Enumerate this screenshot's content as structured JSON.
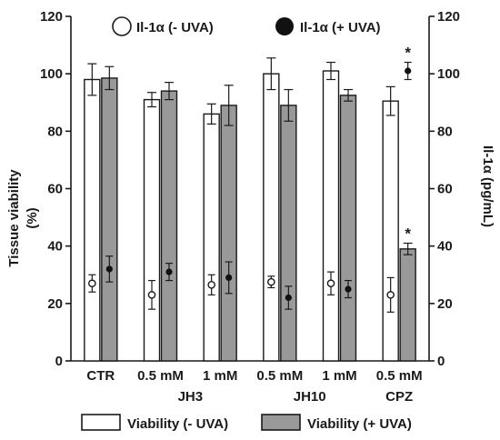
{
  "chart_data": {
    "type": "bar",
    "categories": [
      "CTR",
      "0.5 mM",
      "1 mM",
      "0.5 mM",
      "1 mM",
      "0.5 mM"
    ],
    "groups": [
      {
        "label": "JH3",
        "categories": [
          1,
          2
        ]
      },
      {
        "label": "JH10",
        "categories": [
          3,
          4
        ]
      },
      {
        "label": "CPZ",
        "categories": [
          5
        ]
      }
    ],
    "series": [
      {
        "name": "Viability (- UVA)",
        "kind": "bar",
        "axis": "left",
        "color": "#ffffff",
        "values": [
          98,
          91,
          86,
          100,
          101,
          90.5
        ],
        "errors": [
          5.5,
          2.5,
          3.5,
          5.5,
          3,
          5
        ]
      },
      {
        "name": "Viability (+ UVA)",
        "kind": "bar",
        "axis": "left",
        "color": "#999999",
        "values": [
          98.5,
          94,
          89,
          89,
          92.5,
          39
        ],
        "errors": [
          4,
          3,
          7,
          5.5,
          2,
          2
        ]
      },
      {
        "name": "Il-1α (- UVA)",
        "kind": "point",
        "axis": "right",
        "marker": "open-circle",
        "values": [
          27,
          23,
          26.5,
          27.5,
          27,
          23
        ],
        "errors": [
          3,
          5,
          3.5,
          2,
          4,
          6
        ]
      },
      {
        "name": "Il-1α (+ UVA)",
        "kind": "point",
        "axis": "right",
        "marker": "filled-circle",
        "values": [
          32,
          31,
          29,
          22,
          25,
          101
        ],
        "errors": [
          4.5,
          3,
          5.5,
          4,
          3,
          3
        ]
      }
    ],
    "annotations": [
      {
        "text": "*",
        "category": 5,
        "series": "Il-1α (+ UVA)"
      },
      {
        "text": "*",
        "category": 5,
        "series": "Viability (+ UVA)"
      }
    ],
    "ylabel": "Tissue viability (%)",
    "ylabel_lines": [
      "Tissue viability",
      "(%)"
    ],
    "y2label": "Il-1α (pg/mL)",
    "ylim": [
      0,
      120
    ],
    "y2lim": [
      0,
      120
    ],
    "yticks": [
      0,
      20,
      40,
      60,
      80,
      100,
      120
    ],
    "y2ticks": [
      0,
      20,
      40,
      60,
      80,
      100,
      120
    ],
    "grid": false,
    "legend_top": "top",
    "legend_bottom": "bottom"
  }
}
